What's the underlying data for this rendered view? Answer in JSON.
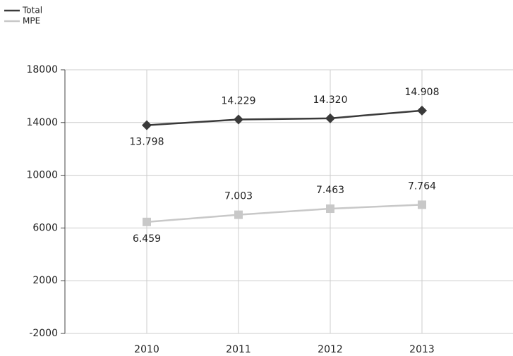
{
  "chart_data": {
    "type": "line",
    "categories": [
      "2010",
      "2011",
      "2012",
      "2013"
    ],
    "series": [
      {
        "name": "Total",
        "color": "#3a3a3a",
        "marker": "diamond",
        "values": [
          13798,
          14229,
          14320,
          14908
        ],
        "value_labels": [
          "13.798",
          "14.229",
          "14.320",
          "14.908"
        ]
      },
      {
        "name": "MPE",
        "color": "#c8c8c8",
        "marker": "square",
        "values": [
          6459,
          7003,
          7463,
          7764
        ],
        "value_labels": [
          "6.459",
          "7.003",
          "7.463",
          "7.764"
        ]
      }
    ],
    "ylim": [
      -2000,
      18000
    ],
    "yticks": [
      -2000,
      2000,
      6000,
      10000,
      14000,
      18000
    ],
    "grid": true,
    "legend": "top-left"
  }
}
